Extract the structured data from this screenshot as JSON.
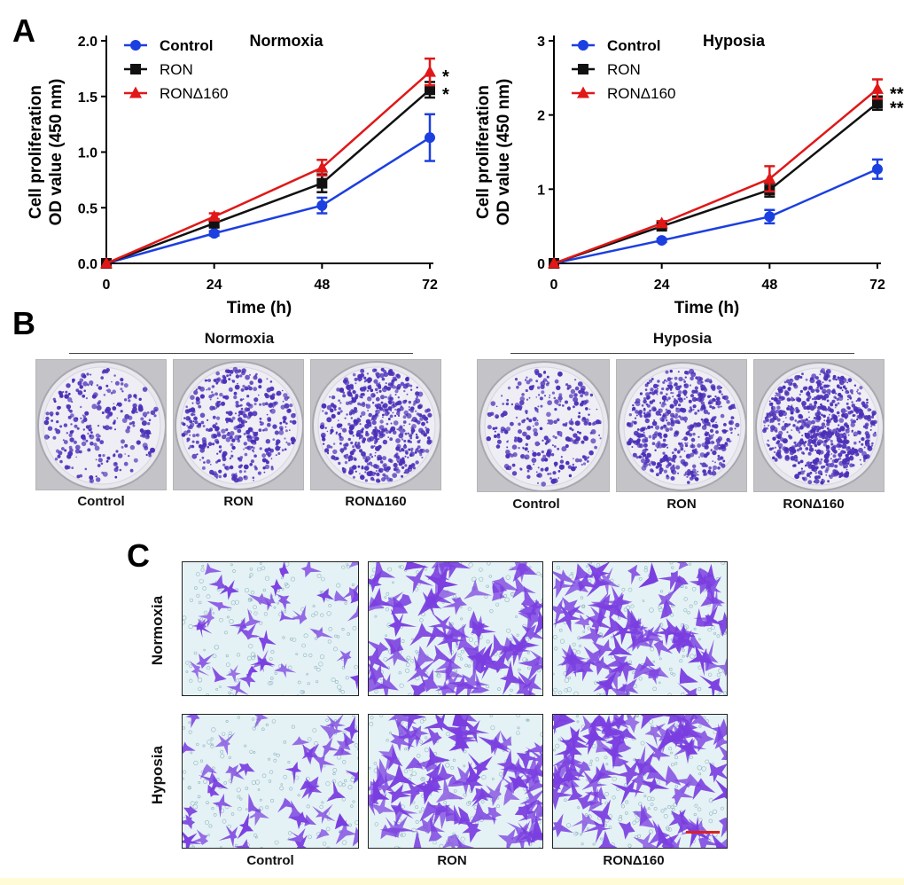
{
  "panels": {
    "a_label": "A",
    "b_label": "B",
    "c_label": "C"
  },
  "chart_data": [
    {
      "type": "line",
      "title": "Normoxia",
      "xlabel": "Time (h)",
      "ylabel_line1": "Cell proliferation",
      "ylabel_line2": "OD value (450 nm)",
      "x": [
        0,
        24,
        48,
        72
      ],
      "xticks": [
        "0",
        "24",
        "48",
        "72"
      ],
      "ylim": [
        0,
        2.0
      ],
      "yticks": [
        "0.0",
        "0.5",
        "1.0",
        "1.5",
        "2.0"
      ],
      "ytick_values": [
        0,
        0.5,
        1.0,
        1.5,
        2.0
      ],
      "series": [
        {
          "name": "Control",
          "color": "#1c3fe0",
          "marker": "circle",
          "values": [
            0,
            0.27,
            0.52,
            1.13
          ],
          "errors": [
            0,
            0.02,
            0.07,
            0.21
          ]
        },
        {
          "name": "RON",
          "color": "#111111",
          "marker": "square",
          "values": [
            0,
            0.36,
            0.72,
            1.56
          ],
          "errors": [
            0,
            0.03,
            0.08,
            0.07
          ]
        },
        {
          "name": "RONΔ160",
          "color": "#e01818",
          "marker": "triangle",
          "values": [
            0,
            0.42,
            0.86,
            1.72
          ],
          "errors": [
            0,
            0.03,
            0.07,
            0.12
          ]
        }
      ],
      "annotations": [
        {
          "series": "RONΔ160",
          "text": "*"
        },
        {
          "series": "RON",
          "text": "*"
        }
      ]
    },
    {
      "type": "line",
      "title": "Hyposia",
      "xlabel": "Time (h)",
      "ylabel_line1": "Cell proliferation",
      "ylabel_line2": "OD value (450 nm)",
      "x": [
        0,
        24,
        48,
        72
      ],
      "xticks": [
        "0",
        "24",
        "48",
        "72"
      ],
      "ylim": [
        0,
        3
      ],
      "yticks": [
        "0",
        "1",
        "2",
        "3"
      ],
      "ytick_values": [
        0,
        1,
        2,
        3
      ],
      "series": [
        {
          "name": "Control",
          "color": "#1c3fe0",
          "marker": "circle",
          "values": [
            0,
            0.31,
            0.63,
            1.27
          ],
          "errors": [
            0,
            0.02,
            0.09,
            0.13
          ]
        },
        {
          "name": "RON",
          "color": "#111111",
          "marker": "square",
          "values": [
            0,
            0.5,
            0.99,
            2.16
          ],
          "errors": [
            0,
            0.03,
            0.09,
            0.09
          ]
        },
        {
          "name": "RONΔ160",
          "color": "#e01818",
          "marker": "triangle",
          "values": [
            0,
            0.54,
            1.14,
            2.35
          ],
          "errors": [
            0,
            0.03,
            0.17,
            0.13
          ]
        }
      ],
      "annotations": [
        {
          "series": "RONΔ160",
          "text": "**"
        },
        {
          "series": "RON",
          "text": "**"
        }
      ]
    }
  ],
  "panel_b": {
    "normoxia_title": "Normoxia",
    "hyposia_title": "Hyposia",
    "normoxia_captions": [
      "Control",
      "RON",
      "RONΔ160"
    ],
    "hyposia_captions": [
      "Control",
      "RON",
      "RONΔ160"
    ],
    "colony_color": "#4b2fb8"
  },
  "panel_c": {
    "row_labels": [
      "Normoxia",
      "Hyposia"
    ],
    "col_labels": [
      "Control",
      "RON",
      "RONΔ160"
    ],
    "stain_color": "#7a3ee0",
    "scale_bar_color": "#e02020"
  }
}
